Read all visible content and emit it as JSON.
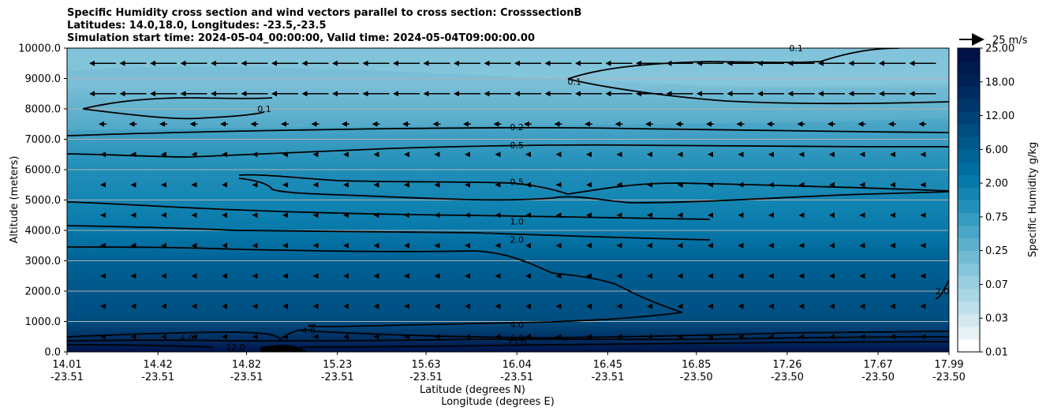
{
  "chart_data": {
    "type": "heatmap",
    "title": [
      "Specific Humidity cross section and wind vectors parallel to cross section: CrosssectionB",
      "Latitudes: 14.0,18.0, Longitudes: -23.5,-23.5",
      "Simulation start time: 2024-05-04_00:00:00, Valid time: 2024-05-04T09:00:00.00"
    ],
    "ylabel": "Altitude (meters)",
    "xlabel_lat": "Latitude (degrees N)",
    "xlabel_lon": "Longitude (degrees E)",
    "ylim": [
      0,
      10000
    ],
    "y_ticks": [
      "0.0",
      "1000.0",
      "2000.0",
      "3000.0",
      "4000.0",
      "5000.0",
      "6000.0",
      "7000.0",
      "8000.0",
      "9000.0",
      "10000.0"
    ],
    "x_ticks": [
      {
        "lat": "14.01",
        "lon": "-23.51"
      },
      {
        "lat": "14.42",
        "lon": "-23.51"
      },
      {
        "lat": "14.82",
        "lon": "-23.51"
      },
      {
        "lat": "15.23",
        "lon": "-23.51"
      },
      {
        "lat": "15.63",
        "lon": "-23.51"
      },
      {
        "lat": "16.04",
        "lon": "-23.51"
      },
      {
        "lat": "16.45",
        "lon": "-23.51"
      },
      {
        "lat": "16.85",
        "lon": "-23.50"
      },
      {
        "lat": "17.26",
        "lon": "-23.50"
      },
      {
        "lat": "17.67",
        "lon": "-23.50"
      },
      {
        "lat": "17.99",
        "lon": "-23.50"
      }
    ],
    "colorbar": {
      "label": "Specific Humidity g/kg",
      "tick_labels": [
        "0.01",
        "0.03",
        "0.07",
        "0.25",
        "0.75",
        "2.00",
        "6.00",
        "12.00",
        "18.00",
        "25.00"
      ],
      "colors": [
        "#ffffff",
        "#e7f2f5",
        "#d2e8ee",
        "#bfe0ea",
        "#abd7e5",
        "#98cee0",
        "#85c4da",
        "#72bad4",
        "#5eb0cd",
        "#4aa5c6",
        "#369bbf",
        "#2490b9",
        "#1485b2",
        "#0779aa",
        "#006da0",
        "#006295",
        "#00578a",
        "#004d80",
        "#004275",
        "#00376a",
        "#002c5f",
        "#002254",
        "#001a4d",
        "#001248"
      ],
      "quiver_key": "25 m/s"
    },
    "contour_labels": [
      {
        "text": "0.1",
        "lat": 14.9,
        "alt": 8000
      },
      {
        "text": "0.1",
        "lat": 16.3,
        "alt": 8900
      },
      {
        "text": "0.1",
        "lat": 17.3,
        "alt": 10000
      },
      {
        "text": "0.2",
        "lat": 16.04,
        "alt": 7400
      },
      {
        "text": "0.5",
        "lat": 16.04,
        "alt": 6800
      },
      {
        "text": "0.5",
        "lat": 16.04,
        "alt": 5600
      },
      {
        "text": "1.0",
        "lat": 16.04,
        "alt": 4300
      },
      {
        "text": "2.0",
        "lat": 16.04,
        "alt": 3700
      },
      {
        "text": "2.0",
        "lat": 17.96,
        "alt": 2000
      },
      {
        "text": "4.0",
        "lat": 16.04,
        "alt": 900
      },
      {
        "text": "6.0",
        "lat": 16.04,
        "alt": 450
      },
      {
        "text": "12.0",
        "lat": 16.04,
        "alt": 300
      },
      {
        "text": "4.0",
        "lat": 14.55,
        "alt": 450
      },
      {
        "text": "12.0",
        "lat": 14.77,
        "alt": 150
      },
      {
        "text": "4.0",
        "lat": 15.1,
        "alt": 700
      }
    ]
  }
}
